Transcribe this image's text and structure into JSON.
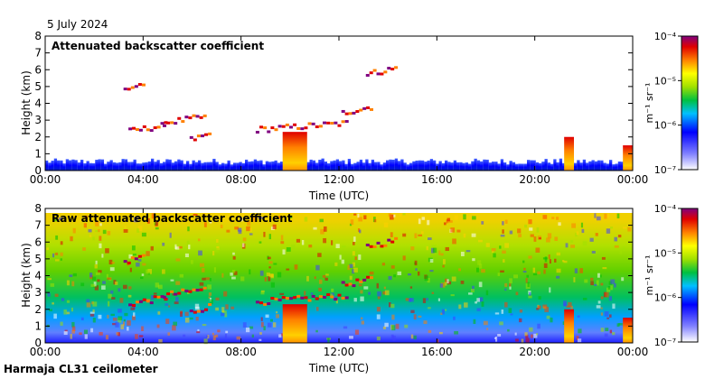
{
  "header": {
    "date": "5 July 2024"
  },
  "footer": {
    "station": "Harmaja CL31 ceilometer"
  },
  "colorbar_label": "m⁻¹ sr⁻¹",
  "chart_data": [
    {
      "type": "heatmap",
      "title": "Attenuated backscatter coefficient",
      "xlabel": "Time (UTC)",
      "ylabel": "Height (km)",
      "xlim": [
        0,
        24
      ],
      "ylim": [
        0,
        8
      ],
      "x_ticks": [
        "00:00",
        "04:00",
        "08:00",
        "12:00",
        "16:00",
        "20:00",
        "00:00"
      ],
      "y_ticks": [
        "0",
        "1",
        "2",
        "3",
        "4",
        "5",
        "6",
        "7",
        "8"
      ],
      "colorbar": {
        "scale": "log",
        "range": [
          1e-07,
          0.0001
        ],
        "ticks": [
          "10⁻⁷",
          "10⁻⁶",
          "10⁻⁵",
          "10⁻⁴"
        ],
        "label": "m⁻¹ sr⁻¹"
      },
      "features": {
        "boundary_layer_top_km": 0.6,
        "cloud_layers": [
          {
            "t_start": 3.2,
            "t_end": 4.1,
            "h": 5.0
          },
          {
            "t_start": 3.4,
            "t_end": 5.0,
            "h": 2.5
          },
          {
            "t_start": 4.8,
            "t_end": 6.6,
            "h": 3.0
          },
          {
            "t_start": 5.9,
            "t_end": 6.8,
            "h": 2.0
          },
          {
            "t_start": 8.6,
            "t_end": 12.4,
            "h": 2.6
          },
          {
            "t_start": 12.1,
            "t_end": 13.4,
            "h": 3.6
          },
          {
            "t_start": 13.1,
            "t_end": 14.4,
            "h": 5.9
          }
        ],
        "precipitation": [
          {
            "t_start": 9.7,
            "t_end": 10.7,
            "h_top": 2.3
          },
          {
            "t_start": 21.2,
            "t_end": 21.6,
            "h_top": 2.0
          },
          {
            "t_start": 23.6,
            "t_end": 24.0,
            "h_top": 1.5
          }
        ]
      }
    },
    {
      "type": "heatmap",
      "title": "Raw attenuated backscatter coefficient",
      "xlabel": "Time (UTC)",
      "ylabel": "Height (km)",
      "xlim": [
        0,
        24
      ],
      "ylim": [
        0,
        8
      ],
      "x_ticks": [
        "00:00",
        "04:00",
        "08:00",
        "12:00",
        "16:00",
        "20:00",
        "00:00"
      ],
      "y_ticks": [
        "0",
        "1",
        "2",
        "3",
        "4",
        "5",
        "6",
        "7",
        "8"
      ],
      "colorbar": {
        "scale": "log",
        "range": [
          1e-07,
          0.0001
        ],
        "ticks": [
          "10⁻⁷",
          "10⁻⁶",
          "10⁻⁵",
          "10⁻⁴"
        ],
        "label": "m⁻¹ sr⁻¹"
      },
      "features": {
        "noisy_upper_background": true,
        "max_height_km": 7.6
      }
    }
  ]
}
